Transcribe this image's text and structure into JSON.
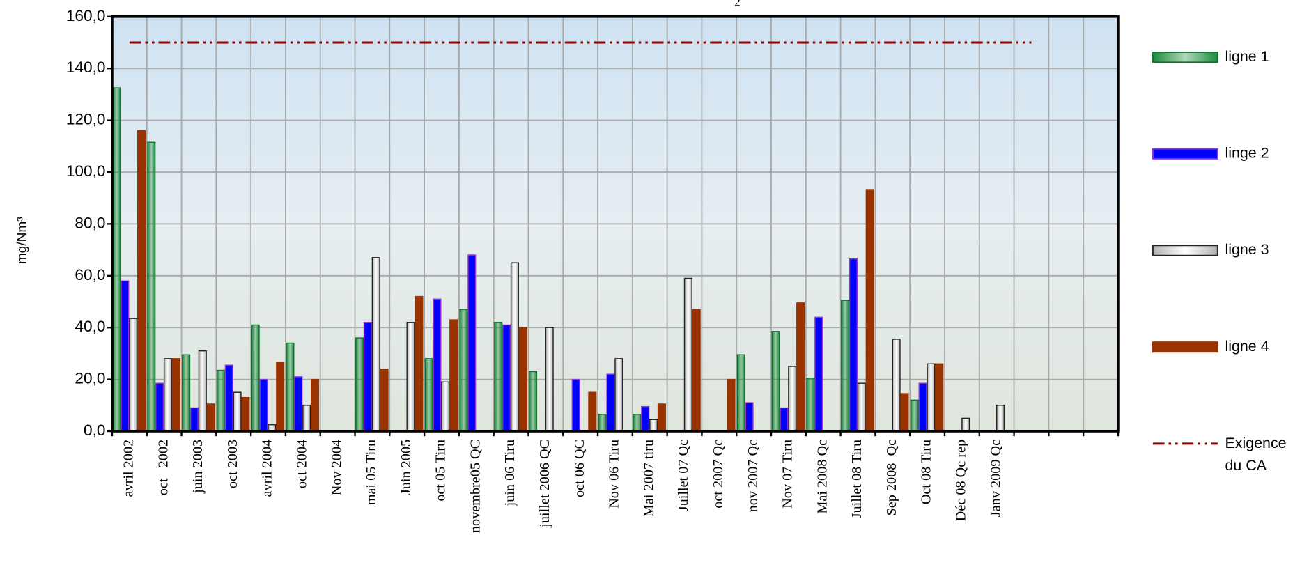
{
  "chart_data": {
    "type": "bar",
    "title": "2",
    "y_label": "mg/Nm³",
    "categories": [
      "avril 2002",
      "oct   2002",
      "juin 2003",
      "oct 2003",
      "avril 2004",
      "oct 2004",
      "Nov 2004",
      "mai 05 Tiru",
      "Juin 2005",
      "oct 05 Tiru",
      "novembre05 QC",
      "juin 06 Tiru",
      "juillet 2006 QC",
      "oct 06 QC",
      "Nov 06 Tiru",
      "Mai 2007 tiru",
      "Juillet 07 Qc",
      "oct 2007 Qc",
      "nov 2007 Qc",
      "Nov 07 Tiru",
      "Mai 2008 Qc",
      "Juillet 08 Tiru",
      "Sep 2008  Qc",
      "Oct 08 Tiru",
      "Déc 08 Qc rep",
      "Janv 2009 Qc",
      null,
      null,
      null
    ],
    "series": [
      {
        "name": "ligne 1",
        "color": "#1e8c3c",
        "values": [
          132.5,
          111.5,
          29.5,
          23.5,
          41,
          34,
          null,
          36,
          null,
          28,
          47,
          42,
          23,
          null,
          6.5,
          6.5,
          null,
          null,
          29.5,
          38.5,
          20.5,
          50.5,
          null,
          12,
          null,
          null,
          null,
          null,
          null
        ]
      },
      {
        "name": "linge 2",
        "color": "#0000ff",
        "values": [
          58,
          18.5,
          9,
          25.5,
          20,
          21,
          null,
          42,
          null,
          51,
          68,
          41,
          null,
          20,
          22,
          9.5,
          null,
          null,
          11,
          9,
          44,
          66.5,
          null,
          18.5,
          null,
          null,
          null,
          null,
          null
        ]
      },
      {
        "name": "ligne 3",
        "color": "#b0b0b0",
        "values": [
          43.5,
          28,
          31,
          15,
          2.5,
          10,
          null,
          67,
          42,
          19,
          null,
          65,
          40,
          null,
          28,
          4.5,
          59,
          null,
          null,
          25,
          null,
          18.5,
          35.5,
          26,
          5,
          10,
          null,
          null,
          null
        ]
      },
      {
        "name": "ligne 4",
        "color": "#993300",
        "values": [
          116,
          28,
          10.5,
          13,
          26.5,
          20,
          null,
          24,
          52,
          43,
          null,
          40,
          null,
          15,
          null,
          10.5,
          47,
          20,
          null,
          49.5,
          null,
          93,
          14.5,
          26,
          null,
          null,
          null,
          null,
          null
        ]
      },
      {
        "name": "Exigence du CA",
        "type": "line",
        "color": "#8b0000",
        "values": [
          150,
          150,
          150,
          150,
          150,
          150,
          150,
          150,
          150,
          150,
          150,
          150,
          150,
          150,
          150,
          150,
          150,
          150,
          150,
          150,
          150,
          150,
          150,
          150,
          150,
          150,
          150,
          null,
          null
        ]
      }
    ],
    "ylim": [
      0,
      160
    ],
    "yticks": [
      {
        "value": 0,
        "label": "0,0"
      },
      {
        "value": 20,
        "label": "20,0"
      },
      {
        "value": 40,
        "label": "40,0"
      },
      {
        "value": 60,
        "label": "60,0"
      },
      {
        "value": 80,
        "label": "80,0"
      },
      {
        "value": 100,
        "label": "100,0"
      },
      {
        "value": 120,
        "label": "120,0"
      },
      {
        "value": 140,
        "label": "140,0"
      },
      {
        "value": 160,
        "label": "160,0"
      }
    ],
    "grid": true,
    "legend": "right"
  }
}
